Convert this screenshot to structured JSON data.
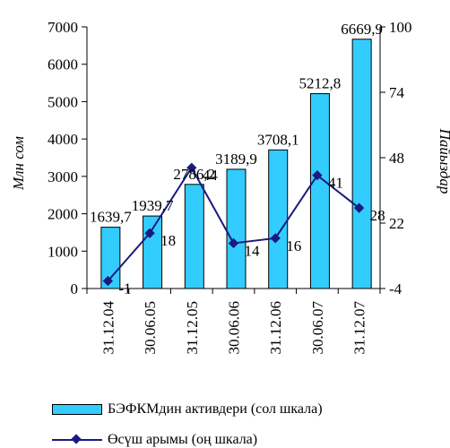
{
  "chart_data": {
    "type": "bar+line",
    "categories": [
      "31.12.04",
      "30.06.05",
      "31.12.05",
      "30.06.06",
      "31.12.06",
      "30.06.07",
      "31.12.07"
    ],
    "series": [
      {
        "name": "БЭФКМдин активдери (сол шкала)",
        "type": "bar",
        "axis": "left",
        "values": [
          1639.7,
          1939.7,
          2786.2,
          3189.9,
          3708.1,
          5212.8,
          6669.9
        ],
        "labels": [
          "1639,7",
          "1939,7",
          "2786,2",
          "3189,9",
          "3708,1",
          "5212,8",
          "6669,9"
        ],
        "color": "#33ccff"
      },
      {
        "name": "Өсүш арымы (оң шкала)",
        "type": "line",
        "axis": "right",
        "values": [
          -1,
          18,
          44,
          14,
          16,
          41,
          28
        ],
        "labels": [
          "-1",
          "18",
          "44",
          "14",
          "16",
          "41",
          "28"
        ],
        "color": "#1a1a80"
      }
    ],
    "ylabel_left": "Млн сом",
    "ylabel_right": "Пайыздар",
    "ylim_left": [
      0,
      7000
    ],
    "yticks_left": [
      0,
      1000,
      2000,
      3000,
      4000,
      5000,
      6000,
      7000
    ],
    "ylim_right": [
      -4,
      100
    ],
    "yticks_right": [
      -4,
      22,
      48,
      74,
      100
    ],
    "grid": false,
    "legend_position": "bottom"
  }
}
